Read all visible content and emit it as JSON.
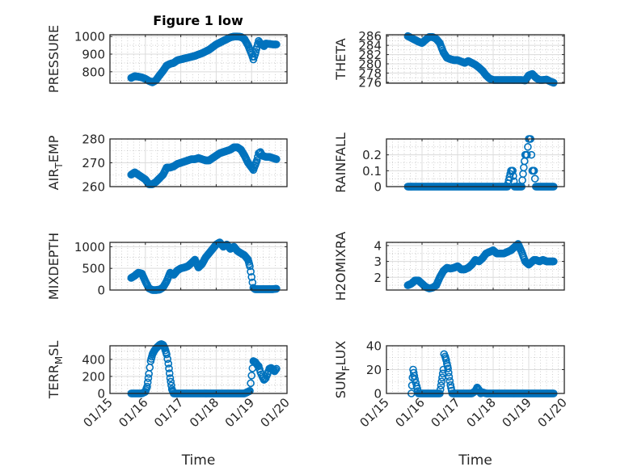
{
  "figure_title": "Figure 1 low",
  "marker_color": "#0072BD",
  "x_tick_labels": [
    "01/15",
    "01/16",
    "01/17",
    "01/18",
    "01/19",
    "01/20"
  ],
  "x_axis_label": "Time",
  "chart_data": [
    {
      "type": "scatter",
      "title": "Figure 1 low",
      "ylabel": "PRESSURE",
      "xlabel": "",
      "x_unit": "days since 01/15 00:00",
      "xlim": [
        0,
        5
      ],
      "ylim": [
        735,
        1010
      ],
      "yticks": [
        800,
        900,
        1000
      ],
      "ytick_labels": [
        "800",
        "900",
        "1000"
      ],
      "grid": true,
      "x": [
        0.6,
        0.7,
        0.8,
        0.9,
        1.0,
        1.1,
        1.2,
        1.3,
        1.4,
        1.5,
        1.6,
        1.7,
        1.8,
        1.9,
        2.0,
        2.1,
        2.2,
        2.3,
        2.4,
        2.5,
        2.6,
        2.7,
        2.8,
        2.9,
        3.0,
        3.1,
        3.2,
        3.3,
        3.4,
        3.5,
        3.6,
        3.7,
        3.8,
        3.9,
        4.0,
        4.05,
        4.1,
        4.15,
        4.2,
        4.25,
        4.3,
        4.35,
        4.4,
        4.5,
        4.6,
        4.7
      ],
      "y": [
        765,
        775,
        772,
        768,
        760,
        748,
        740,
        752,
        780,
        805,
        835,
        845,
        850,
        865,
        870,
        875,
        880,
        885,
        890,
        898,
        905,
        915,
        925,
        940,
        955,
        965,
        975,
        985,
        995,
        1000,
        1000,
        998,
        985,
        950,
        900,
        870,
        900,
        940,
        975,
        960,
        955,
        945,
        960,
        958,
        955,
        955
      ]
    },
    {
      "type": "scatter",
      "ylabel": "THETA",
      "xlabel": "",
      "x_unit": "days since 01/15 00:00",
      "xlim": [
        0,
        5
      ],
      "ylim": [
        275.8,
        286.3
      ],
      "yticks": [
        276,
        278,
        280,
        282,
        284,
        286
      ],
      "ytick_labels": [
        "276",
        "278",
        "280",
        "282",
        "284",
        "286"
      ],
      "grid": true,
      "x": [
        0.6,
        0.7,
        0.8,
        0.9,
        1.0,
        1.1,
        1.2,
        1.3,
        1.4,
        1.5,
        1.6,
        1.7,
        1.8,
        1.9,
        2.0,
        2.1,
        2.2,
        2.3,
        2.4,
        2.5,
        2.6,
        2.7,
        2.8,
        2.9,
        3.0,
        3.1,
        3.2,
        3.3,
        3.4,
        3.5,
        3.6,
        3.7,
        3.8,
        3.9,
        4.0,
        4.1,
        4.2,
        4.3,
        4.4,
        4.5,
        4.6,
        4.7
      ],
      "y": [
        286.0,
        285.6,
        285.2,
        284.8,
        284.5,
        285.2,
        285.8,
        285.8,
        285.4,
        284.5,
        282.5,
        281.3,
        281.0,
        280.8,
        280.8,
        280.5,
        280.2,
        280.6,
        280.2,
        279.8,
        279.2,
        278.5,
        277.5,
        276.8,
        276.5,
        276.5,
        276.5,
        276.5,
        276.5,
        276.5,
        276.5,
        276.5,
        276.5,
        276.4,
        277.5,
        277.8,
        277.0,
        276.5,
        276.5,
        276.6,
        276.2,
        275.9
      ]
    },
    {
      "type": "scatter",
      "ylabel": "AIR_TEMP",
      "xlabel": "",
      "x_unit": "days since 01/15 00:00",
      "xlim": [
        0,
        5
      ],
      "ylim": [
        260,
        280
      ],
      "yticks": [
        260,
        270,
        280
      ],
      "ytick_labels": [
        "260",
        "270",
        "280"
      ],
      "grid": true,
      "x": [
        0.6,
        0.7,
        0.8,
        0.9,
        1.0,
        1.1,
        1.2,
        1.3,
        1.4,
        1.5,
        1.6,
        1.7,
        1.8,
        1.9,
        2.0,
        2.1,
        2.2,
        2.3,
        2.4,
        2.5,
        2.6,
        2.7,
        2.8,
        2.9,
        3.0,
        3.1,
        3.2,
        3.3,
        3.4,
        3.5,
        3.6,
        3.7,
        3.8,
        3.9,
        4.0,
        4.05,
        4.1,
        4.15,
        4.2,
        4.25,
        4.3,
        4.4,
        4.5,
        4.6,
        4.7
      ],
      "y": [
        265,
        266,
        265,
        264,
        263,
        261,
        261,
        262,
        263.5,
        265,
        268,
        268,
        268.5,
        269.5,
        270,
        270.5,
        271,
        271.5,
        271.5,
        272,
        271.5,
        271,
        271,
        272,
        273,
        274,
        274.5,
        275,
        275.5,
        276.5,
        276.5,
        275.5,
        273,
        270,
        268,
        267,
        269,
        271,
        274,
        274.5,
        273,
        272.5,
        272.5,
        272,
        271.5
      ]
    },
    {
      "type": "scatter",
      "ylabel": "RAINFALL",
      "xlabel": "",
      "x_unit": "days since 01/15 00:00",
      "xlim": [
        0,
        5
      ],
      "ylim": [
        0,
        0.3
      ],
      "yticks": [
        0,
        0.1,
        0.2
      ],
      "ytick_labels": [
        "0",
        "0.1",
        "0.2"
      ],
      "grid": true,
      "x": [
        0.6,
        0.7,
        0.8,
        0.9,
        1.0,
        1.1,
        1.2,
        1.3,
        1.4,
        1.5,
        1.6,
        1.7,
        1.8,
        1.9,
        2.0,
        2.1,
        2.2,
        2.3,
        2.4,
        2.5,
        2.6,
        2.7,
        2.8,
        2.9,
        3.0,
        3.1,
        3.2,
        3.3,
        3.4,
        3.5,
        3.55,
        3.6,
        3.65,
        3.7,
        3.8,
        3.9,
        3.95,
        4.0,
        4.05,
        4.1,
        4.15,
        4.2,
        4.3,
        4.4,
        4.5,
        4.6,
        4.7
      ],
      "y": [
        0,
        0,
        0,
        0,
        0,
        0,
        0,
        0,
        0,
        0,
        0,
        0,
        0,
        0,
        0,
        0,
        0,
        0,
        0,
        0,
        0,
        0,
        0,
        0,
        0,
        0,
        0,
        0,
        0,
        0.1,
        0.1,
        0,
        0,
        0,
        0,
        0.2,
        0.2,
        0.3,
        0.3,
        0.1,
        0.1,
        0,
        0,
        0,
        0,
        0,
        0
      ]
    },
    {
      "type": "scatter",
      "ylabel": "MIXDEPTH",
      "xlabel": "",
      "x_unit": "days since 01/15 00:00",
      "xlim": [
        0,
        5
      ],
      "ylim": [
        0,
        1100
      ],
      "yticks": [
        0,
        500,
        1000
      ],
      "ytick_labels": [
        "0",
        "500",
        "1000"
      ],
      "grid": true,
      "x": [
        0.6,
        0.7,
        0.8,
        0.9,
        1.0,
        1.1,
        1.2,
        1.3,
        1.4,
        1.5,
        1.6,
        1.7,
        1.8,
        1.9,
        2.0,
        2.1,
        2.2,
        2.3,
        2.4,
        2.5,
        2.6,
        2.7,
        2.8,
        2.9,
        3.0,
        3.1,
        3.2,
        3.3,
        3.4,
        3.5,
        3.6,
        3.7,
        3.8,
        3.9,
        3.95,
        4.0,
        4.05,
        4.1,
        4.2,
        4.3,
        4.4,
        4.5,
        4.6,
        4.7
      ],
      "y": [
        280,
        330,
        400,
        380,
        200,
        40,
        0,
        0,
        10,
        60,
        200,
        400,
        350,
        450,
        500,
        520,
        550,
        620,
        700,
        520,
        600,
        750,
        850,
        950,
        1050,
        1100,
        1000,
        1050,
        950,
        1000,
        900,
        850,
        800,
        700,
        550,
        300,
        50,
        20,
        20,
        20,
        20,
        20,
        20,
        30
      ]
    },
    {
      "type": "scatter",
      "ylabel": "H2OMIXRA",
      "xlabel": "",
      "x_unit": "days since 01/15 00:00",
      "xlim": [
        0,
        5
      ],
      "ylim": [
        1.2,
        4.2
      ],
      "yticks": [
        2,
        3,
        4
      ],
      "ytick_labels": [
        "2",
        "3",
        "4"
      ],
      "grid": true,
      "x": [
        0.6,
        0.7,
        0.8,
        0.9,
        1.0,
        1.1,
        1.2,
        1.3,
        1.4,
        1.5,
        1.6,
        1.7,
        1.8,
        1.9,
        2.0,
        2.1,
        2.2,
        2.3,
        2.4,
        2.5,
        2.6,
        2.7,
        2.8,
        2.9,
        3.0,
        3.1,
        3.2,
        3.3,
        3.4,
        3.5,
        3.6,
        3.7,
        3.8,
        3.9,
        4.0,
        4.05,
        4.1,
        4.15,
        4.2,
        4.3,
        4.4,
        4.5,
        4.6,
        4.7
      ],
      "y": [
        1.5,
        1.6,
        1.8,
        1.8,
        1.6,
        1.4,
        1.3,
        1.35,
        1.5,
        2.0,
        2.4,
        2.6,
        2.55,
        2.6,
        2.7,
        2.5,
        2.5,
        2.6,
        2.8,
        3.1,
        3.0,
        3.2,
        3.5,
        3.6,
        3.7,
        3.5,
        3.5,
        3.5,
        3.6,
        3.7,
        3.9,
        4.1,
        3.6,
        3.0,
        2.8,
        2.9,
        3.0,
        3.1,
        3.1,
        3.0,
        3.1,
        3.0,
        3.0,
        3.0
      ]
    },
    {
      "type": "scatter",
      "ylabel": "TERR_MSL",
      "xlabel": "Time",
      "x_unit": "days since 01/15 00:00",
      "xlim": [
        0,
        5
      ],
      "ylim": [
        0,
        560
      ],
      "yticks": [
        0,
        200,
        400
      ],
      "ytick_labels": [
        "0",
        "200",
        "400"
      ],
      "xticks": [
        0,
        1,
        2,
        3,
        4,
        5
      ],
      "xtick_labels": [
        "01/15",
        "01/16",
        "01/17",
        "01/18",
        "01/19",
        "01/20"
      ],
      "grid": true,
      "x": [
        0.6,
        0.7,
        0.8,
        0.9,
        1.0,
        1.05,
        1.1,
        1.15,
        1.2,
        1.25,
        1.3,
        1.35,
        1.4,
        1.45,
        1.5,
        1.55,
        1.6,
        1.65,
        1.7,
        1.75,
        1.8,
        2.0,
        2.2,
        2.4,
        2.6,
        2.8,
        3.0,
        3.2,
        3.4,
        3.6,
        3.8,
        3.95,
        4.0,
        4.05,
        4.1,
        4.15,
        4.2,
        4.25,
        4.3,
        4.35,
        4.4,
        4.45,
        4.5,
        4.55,
        4.6,
        4.65,
        4.7
      ],
      "y": [
        0,
        0,
        0,
        0,
        20,
        80,
        230,
        380,
        460,
        500,
        530,
        550,
        570,
        580,
        570,
        530,
        460,
        350,
        180,
        50,
        0,
        0,
        0,
        0,
        0,
        0,
        0,
        0,
        0,
        0,
        0,
        30,
        210,
        380,
        370,
        340,
        320,
        250,
        200,
        160,
        180,
        230,
        290,
        300,
        280,
        260,
        290
      ]
    },
    {
      "type": "scatter",
      "ylabel": "SUN_FLUX",
      "xlabel": "Time",
      "x_unit": "days since 01/15 00:00",
      "xlim": [
        0,
        5
      ],
      "ylim": [
        0,
        40
      ],
      "yticks": [
        0,
        20,
        40
      ],
      "ytick_labels": [
        "0",
        "20",
        "40"
      ],
      "xticks": [
        0,
        1,
        2,
        3,
        4,
        5
      ],
      "xtick_labels": [
        "01/15",
        "01/16",
        "01/17",
        "01/18",
        "01/19",
        "01/20"
      ],
      "grid": true,
      "x": [
        0.7,
        0.75,
        0.8,
        0.85,
        0.9,
        1.0,
        1.1,
        1.2,
        1.3,
        1.4,
        1.5,
        1.55,
        1.6,
        1.62,
        1.65,
        1.68,
        1.7,
        1.73,
        1.76,
        1.8,
        1.85,
        1.9,
        2.0,
        2.1,
        2.2,
        2.3,
        2.4,
        2.5,
        2.55,
        2.6,
        2.65,
        2.7,
        2.8,
        2.9,
        3.0,
        3.2,
        3.4,
        3.6,
        3.8,
        4.0,
        4.2,
        4.4,
        4.6,
        4.7
      ],
      "y": [
        0,
        20,
        12,
        6,
        0,
        0,
        0,
        0,
        0,
        0,
        0,
        10,
        20,
        33,
        31,
        28,
        25,
        21,
        14,
        7,
        0,
        0,
        0,
        0,
        0,
        0,
        0,
        2,
        5,
        3,
        0,
        1,
        0,
        0,
        0,
        0,
        0,
        0,
        0,
        0,
        0,
        0,
        0,
        0
      ]
    }
  ]
}
